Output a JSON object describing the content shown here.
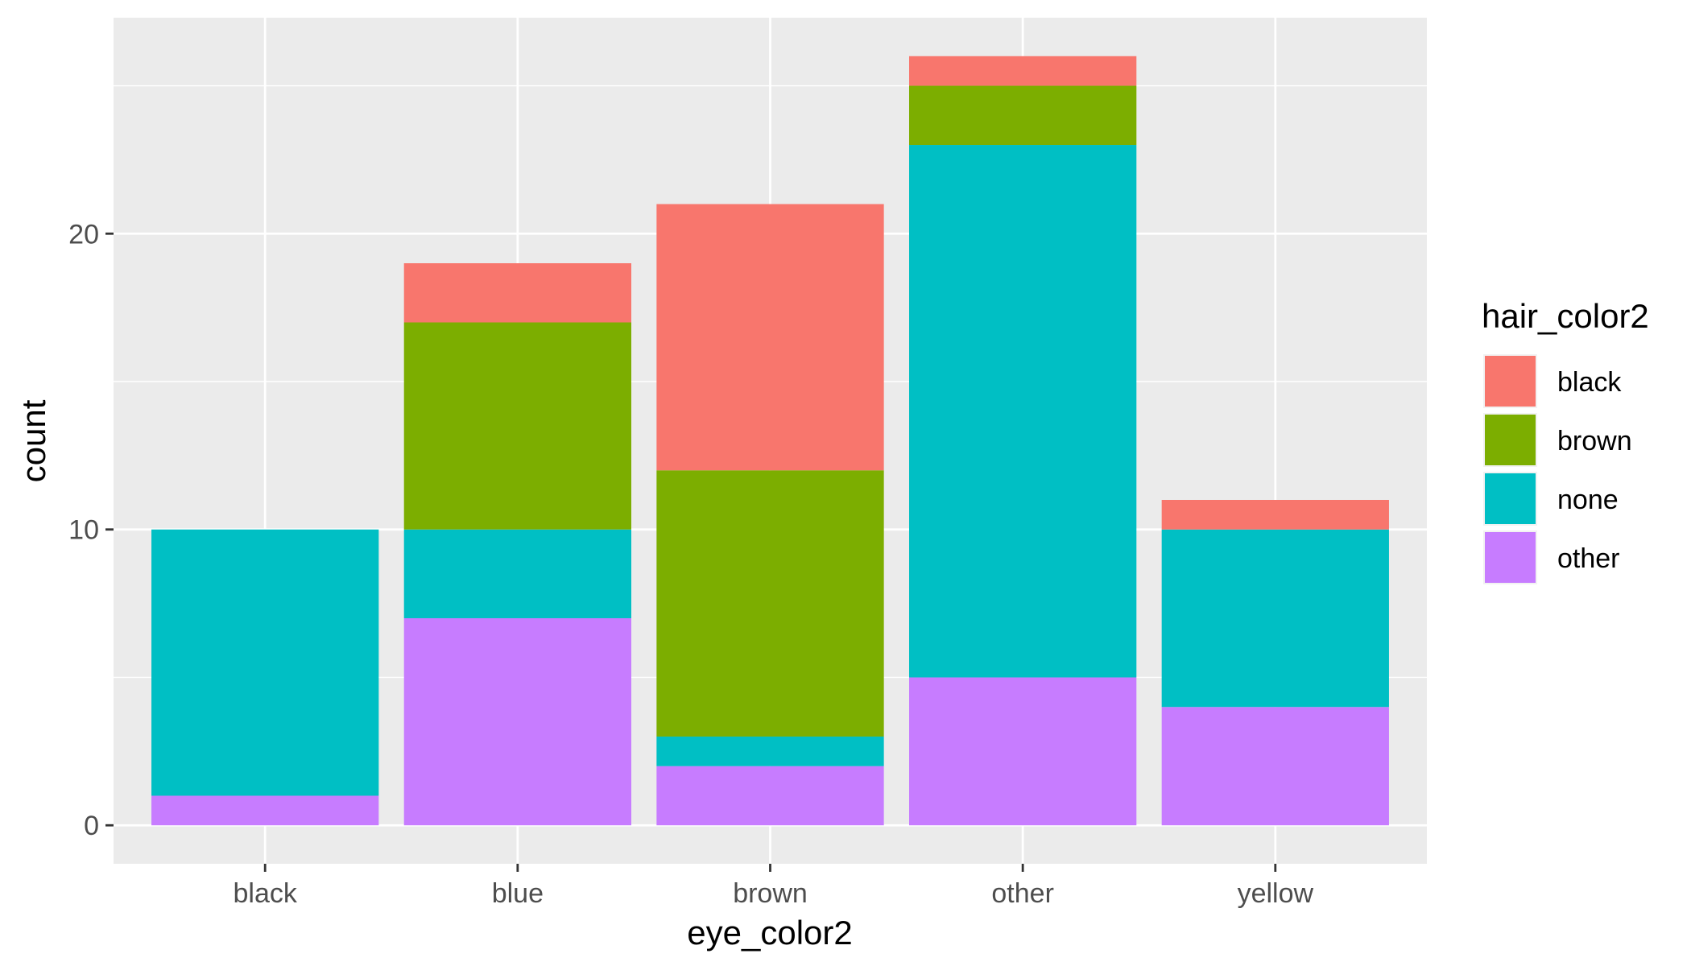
{
  "chart_data": {
    "type": "bar",
    "stacked": true,
    "title": "",
    "xlabel": "eye_color2",
    "ylabel": "count",
    "ylim": [
      -1.3,
      27.3
    ],
    "y_ticks": [
      0,
      10,
      20
    ],
    "y_minor_ticks": [
      5,
      15,
      25
    ],
    "grid": true,
    "legend_position": "right",
    "legend_title": "hair_color2",
    "categories": [
      "black",
      "blue",
      "brown",
      "other",
      "yellow"
    ],
    "stack_order": [
      "other",
      "none",
      "brown",
      "black"
    ],
    "series": [
      {
        "name": "black",
        "color": "#F8766D",
        "values": [
          0,
          2,
          9,
          1,
          1
        ]
      },
      {
        "name": "brown",
        "color": "#7CAE00",
        "values": [
          0,
          7,
          9,
          2,
          0
        ]
      },
      {
        "name": "none",
        "color": "#00BFC4",
        "values": [
          9,
          3,
          1,
          18,
          6
        ]
      },
      {
        "name": "other",
        "color": "#C77CFF",
        "values": [
          1,
          7,
          2,
          5,
          4
        ]
      }
    ],
    "panel_color": "#EBEBEB",
    "gridline_color": "#FFFFFF"
  }
}
